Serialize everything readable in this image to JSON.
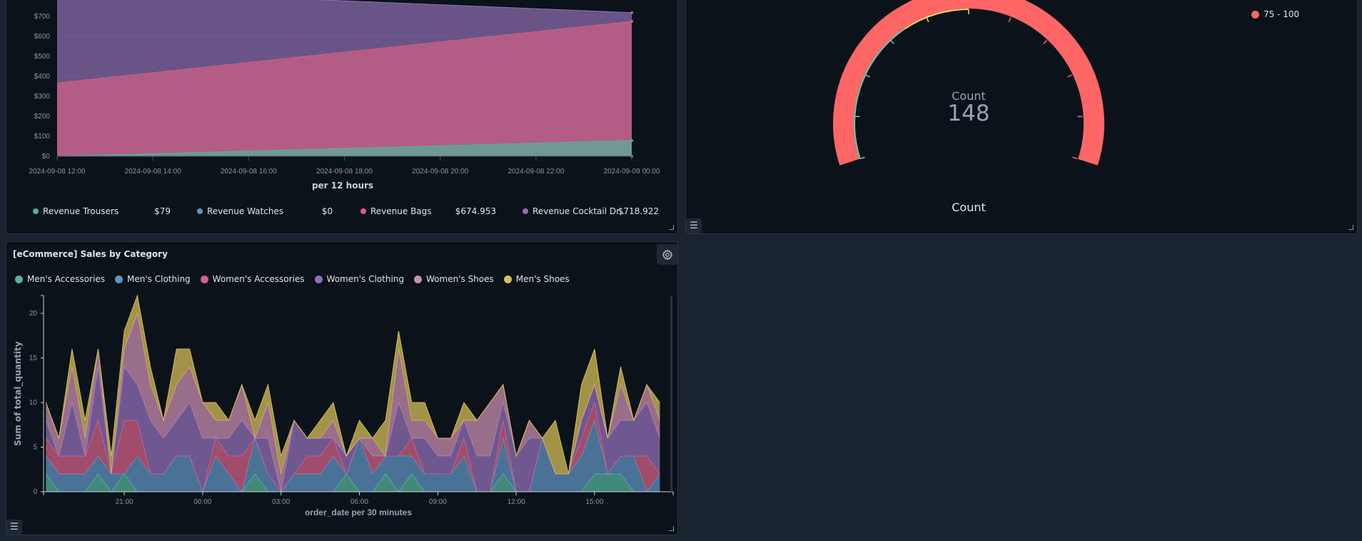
{
  "revenue_panel": {
    "y_ticks": [
      "$0",
      "$100",
      "$200",
      "$300",
      "$400",
      "$500",
      "$600",
      "$700"
    ],
    "x_label": "per 12 hours",
    "legend": [
      {
        "label": "Revenue Trousers",
        "value": "$79",
        "color": "#54b399"
      },
      {
        "label": "Revenue Watches",
        "value": "$0",
        "color": "#6092c0"
      },
      {
        "label": "Revenue Bags",
        "value": "$674.953",
        "color": "#d36086"
      },
      {
        "label": "Revenue Cocktail Dr...",
        "value": "$718.922",
        "color": "#9170b8"
      }
    ]
  },
  "gauge_panel": {
    "metric_label": "Count",
    "value": "148",
    "title": "Count",
    "legend": [
      {
        "label": "75 - 100",
        "color": "#ff6666"
      }
    ],
    "bands": [
      {
        "color": "#6dccb1"
      },
      {
        "color": "#f1d86f"
      },
      {
        "color": "#ff6666"
      }
    ]
  },
  "sales_panel": {
    "title": "[eCommerce] Sales by Category",
    "settings_icon": "gear-icon"
  },
  "chart_data": [
    {
      "type": "area",
      "x": [
        "2024-09-08 12:00",
        "2024-09-09 00:00"
      ],
      "x_ticks": [
        "2024-09-08 12:00",
        "2024-09-08 14:00",
        "2024-09-08 16:00",
        "2024-09-08 18:00",
        "2024-09-08 20:00",
        "2024-09-08 22:00",
        "2024-09-09 00:00"
      ],
      "xlabel": "per 12 hours",
      "ylim": [
        0,
        800
      ],
      "series": [
        {
          "name": "Revenue Trousers",
          "values": [
            0,
            79
          ],
          "color": "#54b399"
        },
        {
          "name": "Revenue Watches",
          "values": [
            0,
            0
          ],
          "color": "#6092c0"
        },
        {
          "name": "Revenue Bags",
          "values": [
            367,
            674.953
          ],
          "color": "#d36086"
        },
        {
          "name": "Revenue Cocktail Dr...",
          "values": [
            837,
            718.922
          ],
          "color": "#9170b8"
        }
      ],
      "legend": "bottom"
    },
    {
      "type": "area",
      "stacked": true,
      "xlabel": "order_date per 30 minutes",
      "ylabel": "Sum of total_quantity",
      "x_ticks": [
        "21:00",
        "00:00",
        "03:00",
        "06:00",
        "09:00",
        "12:00",
        "15:00"
      ],
      "x_range": [
        "18:00",
        "17:30"
      ],
      "y_ticks": [
        "0",
        "5",
        "10",
        "15",
        "20"
      ],
      "ylim": [
        0,
        22
      ],
      "legend": "top-left",
      "series": [
        {
          "name": "Men's Accessories",
          "color": "#54b399",
          "values": [
            2,
            0,
            0,
            0,
            2,
            0,
            2,
            0,
            0,
            0,
            0,
            0,
            0,
            0,
            0,
            0,
            2,
            0,
            0,
            0,
            0,
            0,
            0,
            2,
            0,
            0,
            2,
            0,
            2,
            0,
            0,
            0,
            0,
            0,
            0,
            2,
            0,
            0,
            0,
            0,
            0,
            0,
            2,
            2,
            2,
            0,
            0,
            0
          ]
        },
        {
          "name": "Men's Clothing",
          "color": "#6092c0",
          "values": [
            2,
            2,
            2,
            2,
            2,
            2,
            0,
            4,
            2,
            2,
            4,
            4,
            0,
            4,
            2,
            0,
            4,
            2,
            0,
            2,
            2,
            2,
            4,
            0,
            6,
            2,
            2,
            4,
            2,
            2,
            2,
            2,
            4,
            0,
            0,
            4,
            0,
            0,
            6,
            2,
            2,
            4,
            6,
            0,
            2,
            4,
            0,
            2
          ]
        },
        {
          "name": "Women's Accessories",
          "color": "#d36086",
          "values": [
            2,
            2,
            2,
            2,
            4,
            0,
            6,
            4,
            0,
            0,
            0,
            0,
            0,
            2,
            2,
            4,
            0,
            0,
            0,
            0,
            2,
            2,
            2,
            0,
            0,
            2,
            0,
            0,
            2,
            0,
            0,
            0,
            2,
            0,
            0,
            2,
            0,
            0,
            0,
            0,
            0,
            2,
            2,
            0,
            0,
            0,
            4,
            0
          ]
        },
        {
          "name": "Women's Clothing",
          "color": "#9170b8",
          "values": [
            2,
            0,
            6,
            0,
            6,
            0,
            6,
            4,
            6,
            4,
            4,
            6,
            6,
            0,
            2,
            4,
            0,
            4,
            0,
            6,
            2,
            2,
            0,
            2,
            0,
            0,
            0,
            6,
            0,
            4,
            2,
            2,
            2,
            4,
            4,
            2,
            4,
            6,
            0,
            0,
            0,
            2,
            2,
            4,
            4,
            4,
            6,
            4
          ]
        },
        {
          "name": "Women's Shoes",
          "color": "#ca8eae",
          "values": [
            2,
            2,
            4,
            2,
            2,
            0,
            2,
            8,
            4,
            2,
            4,
            4,
            4,
            2,
            2,
            4,
            0,
            4,
            2,
            0,
            0,
            0,
            2,
            0,
            0,
            2,
            0,
            6,
            2,
            2,
            2,
            2,
            0,
            4,
            6,
            2,
            0,
            2,
            0,
            0,
            0,
            0,
            0,
            0,
            4,
            0,
            2,
            2
          ]
        },
        {
          "name": "Men's Shoes",
          "color": "#d6bf57",
          "values": [
            0,
            0,
            2,
            2,
            0,
            2,
            2,
            2,
            2,
            0,
            4,
            2,
            0,
            2,
            0,
            0,
            2,
            2,
            2,
            0,
            0,
            2,
            2,
            0,
            2,
            0,
            4,
            2,
            2,
            2,
            0,
            0,
            2,
            0,
            0,
            0,
            0,
            0,
            0,
            6,
            0,
            4,
            4,
            0,
            2,
            0,
            0,
            2
          ]
        }
      ]
    }
  ]
}
